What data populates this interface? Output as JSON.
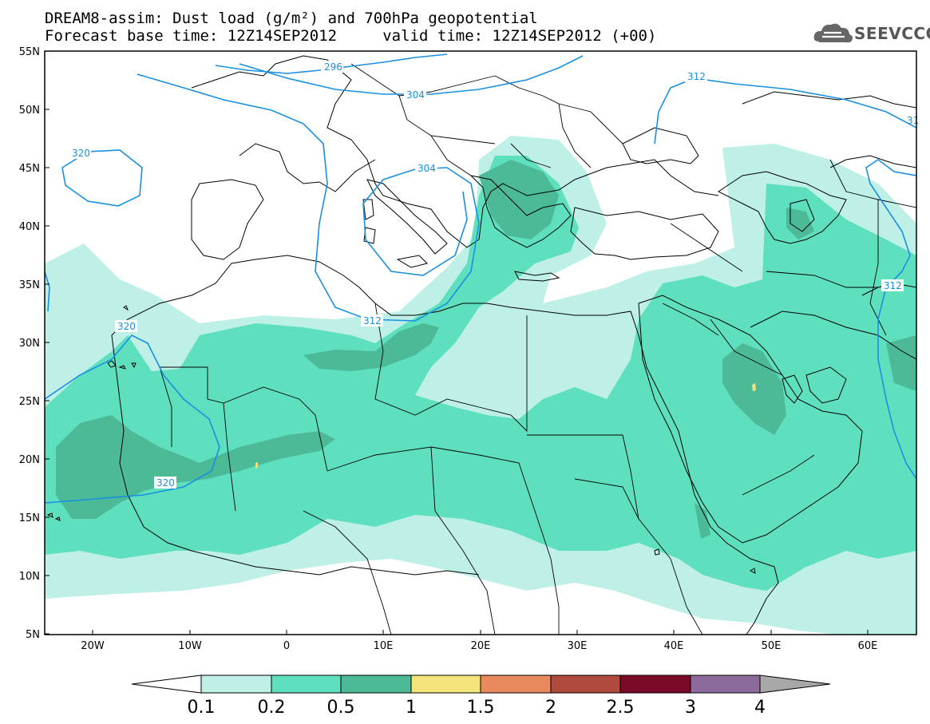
{
  "header": {
    "title_line1": "DREAM8-assim: Dust load (g/m²) and 700hPa geopotential",
    "title_line2": "Forecast base time: 12Z14SEP2012     valid time: 12Z14SEP2012 (+00)"
  },
  "logo": {
    "text": "SEEVCCC",
    "icon": "cloud-icon"
  },
  "colors": {
    "level_01": "#bff0e8",
    "level_02": "#5ee0be",
    "level_05": "#4cb997",
    "level_1": "#f2e47a",
    "level_15": "#e88a5e",
    "level_2": "#b04a3c",
    "level_25": "#7a0a28",
    "level_3": "#8c6a9c",
    "level_4": "#a8a8a8",
    "contour": "#1a8fe0",
    "coast": "#000000"
  },
  "map": {
    "lat_labels": [
      "55N",
      "50N",
      "45N",
      "40N",
      "35N",
      "30N",
      "25N",
      "20N",
      "15N",
      "10N",
      "5N"
    ],
    "lon_labels": [
      "20W",
      "10W",
      "0",
      "10E",
      "20E",
      "30E",
      "40E",
      "50E",
      "60E"
    ],
    "contour_labels": [
      "296",
      "304",
      "312",
      "320",
      "304",
      "312",
      "320",
      "312",
      "31"
    ]
  },
  "colorbar": {
    "labels": [
      "0.1",
      "0.2",
      "0.5",
      "1",
      "1.5",
      "2",
      "2.5",
      "3",
      "4"
    ]
  }
}
